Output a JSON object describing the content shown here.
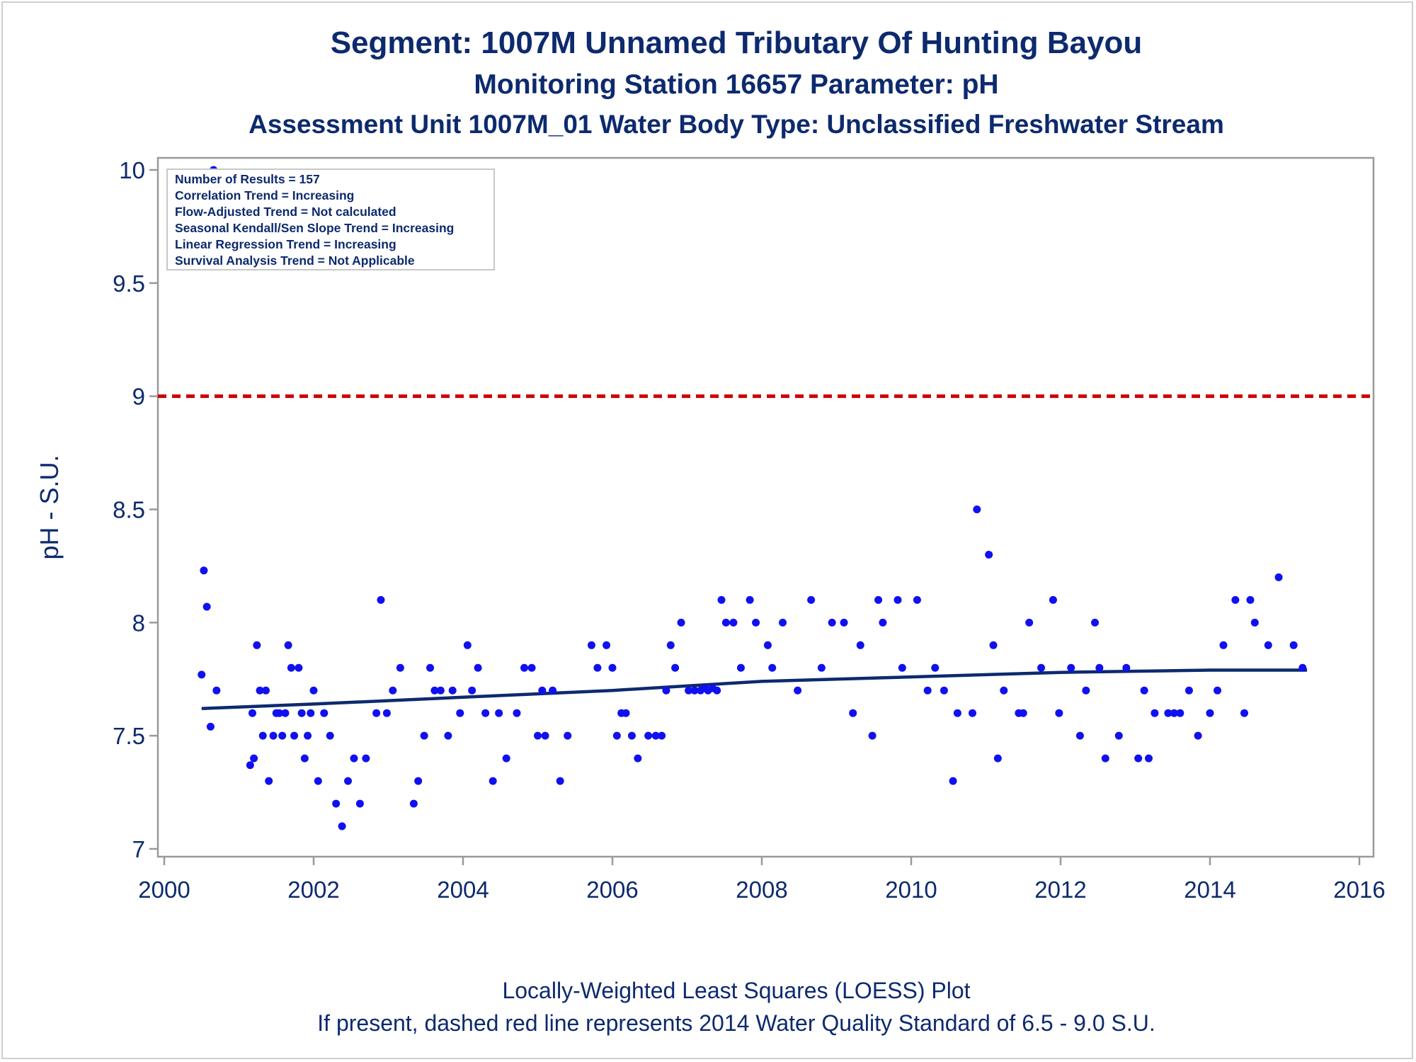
{
  "titles": {
    "line1": "Segment: 1007M  Unnamed Tributary Of Hunting Bayou",
    "line2": "Monitoring Station 16657 Parameter: pH",
    "line3": "Assessment Unit 1007M_01   Water Body Type: Unclassified Freshwater Stream"
  },
  "footnotes": {
    "line1": "Locally-Weighted Least Squares (LOESS) Plot",
    "line2": "If present, dashed red line represents 2014 Water Quality Standard of 6.5 - 9.0 S.U."
  },
  "inset_box": [
    "Number of Results = 157",
    "Correlation Trend = Increasing",
    "Flow-Adjusted Trend = Not calculated",
    "Seasonal Kendall/Sen Slope Trend = Increasing",
    "Linear Regression Trend = Increasing",
    "Survival Analysis Trend = Not Applicable"
  ],
  "colors": {
    "text": "#0d2a6e",
    "points": "#1010f0",
    "loess_line": "#0d2a6e",
    "standard_line": "#cc0000",
    "frame": "#999999"
  },
  "chart_data": {
    "type": "scatter",
    "ylabel": "pH - S.U.",
    "xlabel": "",
    "xlim": [
      2000,
      2016
    ],
    "ylim": [
      7,
      10
    ],
    "x_ticks": [
      2000,
      2002,
      2004,
      2006,
      2008,
      2010,
      2012,
      2014,
      2016
    ],
    "y_ticks": [
      7,
      7.5,
      8,
      8.5,
      9,
      9.5,
      10
    ],
    "y_tick_labels": [
      "7",
      "7.5",
      "8",
      "8.5",
      "9",
      "9.5",
      "10"
    ],
    "reference_line": {
      "y": 9.0,
      "style": "dashed",
      "color": "#cc0000"
    },
    "loess": {
      "x": [
        2000.5,
        2002,
        2004,
        2006,
        2008,
        2010,
        2012,
        2014,
        2015.3
      ],
      "y": [
        7.62,
        7.64,
        7.67,
        7.7,
        7.74,
        7.76,
        7.78,
        7.79,
        7.79
      ]
    },
    "points": {
      "x": [
        2000.5,
        2000.53,
        2000.57,
        2000.62,
        2000.66,
        2000.7,
        2001.15,
        2001.18,
        2001.2,
        2001.24,
        2001.28,
        2001.32,
        2001.36,
        2001.4,
        2001.46,
        2001.5,
        2001.54,
        2001.58,
        2001.62,
        2001.66,
        2001.7,
        2001.74,
        2001.8,
        2001.84,
        2001.88,
        2001.92,
        2001.96,
        2002.0,
        2002.06,
        2002.14,
        2002.22,
        2002.3,
        2002.38,
        2002.46,
        2002.54,
        2002.62,
        2002.7,
        2002.84,
        2002.9,
        2002.98,
        2003.06,
        2003.16,
        2003.34,
        2003.4,
        2003.48,
        2003.56,
        2003.62,
        2003.7,
        2003.8,
        2003.86,
        2003.96,
        2004.06,
        2004.12,
        2004.2,
        2004.3,
        2004.4,
        2004.48,
        2004.58,
        2004.72,
        2004.82,
        2004.92,
        2005.0,
        2005.06,
        2005.1,
        2005.2,
        2005.3,
        2005.4,
        2005.72,
        2005.8,
        2005.92,
        2006.0,
        2006.06,
        2006.12,
        2006.18,
        2006.26,
        2006.34,
        2006.48,
        2006.58,
        2006.66,
        2006.72,
        2006.78,
        2006.84,
        2006.92,
        2007.02,
        2007.1,
        2007.18,
        2007.24,
        2007.28,
        2007.34,
        2007.4,
        2007.46,
        2007.52,
        2007.62,
        2007.72,
        2007.84,
        2007.92,
        2008.08,
        2008.14,
        2008.28,
        2008.48,
        2008.66,
        2008.8,
        2008.94,
        2009.1,
        2009.22,
        2009.32,
        2009.48,
        2009.56,
        2009.62,
        2009.82,
        2009.88,
        2010.08,
        2010.22,
        2010.32,
        2010.44,
        2010.56,
        2010.62,
        2010.82,
        2010.88,
        2011.04,
        2011.1,
        2011.16,
        2011.24,
        2011.44,
        2011.5,
        2011.58,
        2011.74,
        2011.9,
        2011.98,
        2012.14,
        2012.26,
        2012.34,
        2012.46,
        2012.52,
        2012.6,
        2012.78,
        2012.88,
        2013.04,
        2013.12,
        2013.18,
        2013.26,
        2013.44,
        2013.52,
        2013.6,
        2013.72,
        2013.84,
        2014.0,
        2014.1,
        2014.18,
        2014.34,
        2014.46,
        2014.54,
        2014.6,
        2014.78,
        2014.92,
        2015.12,
        2015.24
      ],
      "y": [
        7.77,
        8.23,
        8.07,
        7.54,
        10.0,
        7.7,
        7.37,
        7.6,
        7.4,
        7.9,
        7.7,
        7.5,
        7.7,
        7.3,
        7.5,
        7.6,
        7.6,
        7.5,
        7.6,
        7.9,
        7.8,
        7.5,
        7.8,
        7.6,
        7.4,
        7.5,
        7.6,
        7.7,
        7.3,
        7.6,
        7.5,
        7.2,
        7.1,
        7.3,
        7.4,
        7.2,
        7.4,
        7.6,
        8.1,
        7.6,
        7.7,
        7.8,
        7.2,
        7.3,
        7.5,
        7.8,
        7.7,
        7.7,
        7.5,
        7.7,
        7.6,
        7.9,
        7.7,
        7.8,
        7.6,
        7.3,
        7.6,
        7.4,
        7.6,
        7.8,
        7.8,
        7.5,
        7.7,
        7.5,
        7.7,
        7.3,
        7.5,
        7.9,
        7.8,
        7.9,
        7.8,
        7.5,
        7.6,
        7.6,
        7.5,
        7.4,
        7.5,
        7.5,
        7.5,
        7.7,
        7.9,
        7.8,
        8.0,
        7.7,
        7.7,
        7.7,
        7.71,
        7.7,
        7.71,
        7.7,
        8.1,
        8.0,
        8.0,
        7.8,
        8.1,
        8.0,
        7.9,
        7.8,
        8.0,
        7.7,
        8.1,
        7.8,
        8.0,
        8.0,
        7.6,
        7.9,
        7.5,
        8.1,
        8.0,
        8.1,
        7.8,
        8.1,
        7.7,
        7.8,
        7.7,
        7.3,
        7.6,
        7.6,
        8.5,
        8.3,
        7.9,
        7.4,
        7.7,
        7.6,
        7.6,
        8.0,
        7.8,
        8.1,
        7.6,
        7.8,
        7.5,
        7.7,
        8.0,
        7.8,
        7.4,
        7.5,
        7.8,
        7.4,
        7.7,
        7.4,
        7.6,
        7.6,
        7.6,
        7.6,
        7.7,
        7.5,
        7.6,
        7.7,
        7.9,
        8.1,
        7.6,
        8.1,
        8.0,
        7.9,
        8.2,
        7.9,
        7.8
      ]
    }
  }
}
